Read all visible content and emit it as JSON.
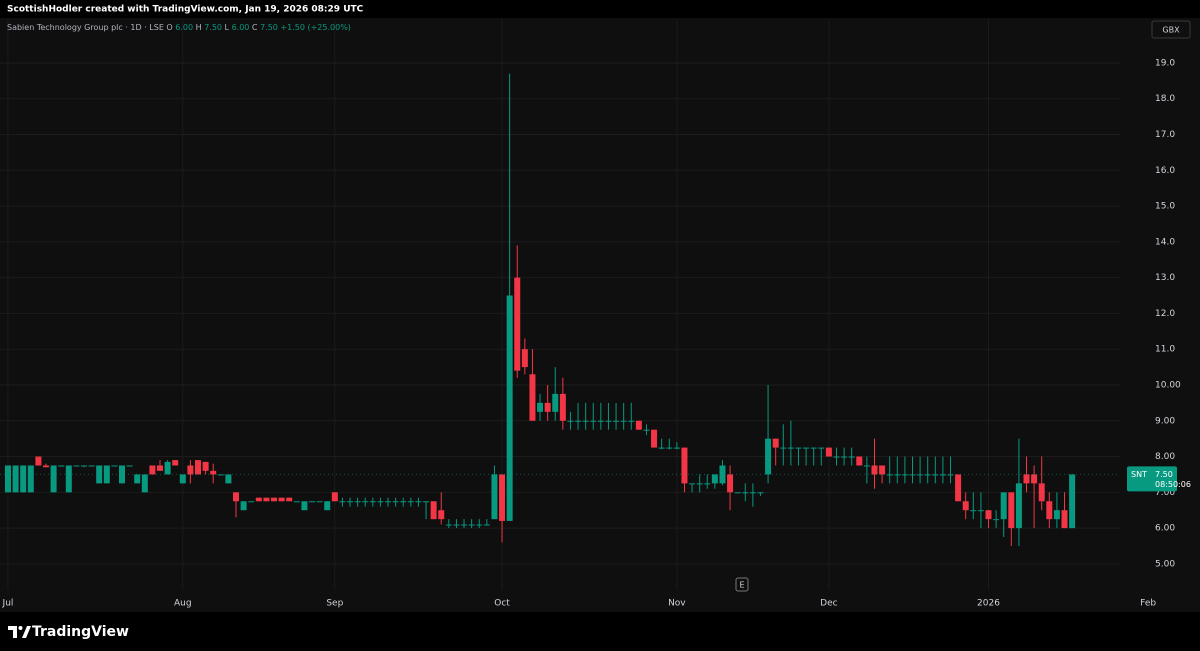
{
  "chart_data": {
    "type": "candlestick",
    "header": "ScottishHodler created with TradingView.com, Jan 19, 2026 08:29 UTC",
    "legend": {
      "name": "Sabien Technology Group plc · 1D · LSE",
      "fields": [
        {
          "key": "O",
          "value": "6.00"
        },
        {
          "key": "H",
          "value": "7.50"
        },
        {
          "key": "L",
          "value": "6.00"
        },
        {
          "key": "C",
          "value": "7.50"
        }
      ],
      "change": "+1.50 (+25.00%)"
    },
    "currency": "GBX",
    "price_label": {
      "symbol": "SNT",
      "price": "7.50",
      "countdown": "08:50:06"
    },
    "event_marker": "E",
    "brand": "TradingView",
    "up_color": "#089981",
    "down_color": "#f23645",
    "open": [
      7.0,
      7.0,
      7.0,
      7.0,
      8.0,
      7.75,
      7.0,
      7.75,
      7.0,
      7.75,
      7.75,
      7.75,
      7.25,
      7.25,
      7.75,
      7.25,
      7.75,
      7.25,
      7.0,
      7.75,
      7.75,
      7.5,
      7.9,
      7.25,
      7.75,
      7.9,
      7.85,
      7.6,
      7.5,
      7.25,
      7.0,
      6.5,
      6.75,
      6.85,
      6.85,
      6.85,
      6.85,
      6.85,
      6.75,
      6.5,
      6.75,
      6.75,
      6.5,
      7.0,
      6.75,
      6.75,
      6.75,
      6.75,
      6.75,
      6.75,
      6.75,
      6.75,
      6.75,
      6.75,
      6.75,
      6.75,
      6.75,
      6.5,
      6.1,
      6.1,
      6.1,
      6.1,
      6.1,
      6.1,
      6.25,
      7.5,
      6.2,
      13.0,
      11.0,
      10.3,
      9.25,
      9.5,
      9.25,
      9.75,
      9.0,
      9.0,
      9.0,
      9.0,
      9.0,
      9.0,
      9.0,
      9.0,
      9.0,
      9.0,
      8.75,
      8.75,
      8.25,
      8.25,
      8.25,
      8.25,
      7.25,
      7.25,
      7.25,
      7.25,
      7.25,
      7.5,
      7.0,
      7.0,
      7.0,
      7.0,
      7.5,
      8.5,
      8.25,
      8.25,
      8.25,
      8.25,
      8.25,
      8.25,
      8.25,
      8.0,
      8.0,
      8.0,
      8.0,
      7.75,
      7.75,
      7.75,
      7.5,
      7.5,
      7.5,
      7.5,
      7.5,
      7.5,
      7.5,
      7.5,
      7.5,
      7.5,
      6.75,
      6.5,
      6.5,
      6.5,
      6.25,
      6.25,
      7.0,
      6.0,
      7.5,
      7.5,
      7.25,
      6.75,
      6.25,
      6.5,
      6.0
    ],
    "high": [
      7.75,
      7.75,
      7.75,
      7.75,
      8.0,
      7.8,
      7.75,
      7.75,
      7.75,
      7.75,
      7.75,
      7.75,
      7.75,
      7.75,
      7.75,
      7.75,
      7.75,
      7.5,
      7.5,
      7.75,
      7.9,
      7.9,
      7.9,
      7.5,
      7.9,
      7.9,
      7.85,
      7.8,
      7.5,
      7.5,
      7.0,
      6.75,
      6.75,
      6.85,
      6.85,
      6.85,
      6.85,
      6.85,
      6.75,
      6.75,
      6.75,
      6.75,
      6.75,
      7.0,
      6.85,
      6.85,
      6.85,
      6.85,
      6.85,
      6.85,
      6.85,
      6.85,
      6.85,
      6.85,
      6.85,
      6.75,
      6.75,
      7.0,
      6.25,
      6.25,
      6.25,
      6.25,
      6.25,
      6.25,
      7.75,
      7.5,
      18.7,
      13.9,
      11.3,
      11.0,
      9.75,
      10.0,
      10.5,
      10.2,
      9.25,
      9.5,
      9.5,
      9.5,
      9.5,
      9.5,
      9.5,
      9.5,
      9.5,
      9.0,
      8.9,
      8.75,
      8.5,
      8.5,
      8.4,
      8.25,
      7.25,
      7.5,
      7.5,
      7.5,
      7.9,
      7.75,
      7.0,
      7.25,
      7.25,
      7.0,
      10.0,
      8.5,
      8.9,
      9.0,
      8.25,
      8.25,
      8.25,
      8.25,
      8.25,
      8.25,
      8.25,
      8.25,
      8.0,
      8.0,
      8.5,
      7.75,
      8.0,
      8.0,
      8.0,
      8.0,
      8.0,
      8.0,
      8.0,
      8.0,
      8.0,
      7.5,
      7.0,
      7.0,
      7.0,
      6.5,
      6.5,
      7.0,
      7.0,
      8.5,
      8.0,
      7.75,
      8.0,
      7.0,
      7.0,
      7.0,
      7.5
    ],
    "low": [
      7.0,
      7.0,
      7.0,
      7.0,
      7.75,
      7.7,
      7.0,
      7.75,
      7.0,
      7.75,
      7.7,
      7.75,
      7.25,
      7.25,
      7.75,
      7.25,
      7.75,
      7.25,
      7.0,
      7.5,
      7.6,
      7.5,
      7.75,
      7.25,
      7.25,
      7.5,
      7.5,
      7.25,
      7.5,
      7.25,
      6.3,
      6.5,
      6.75,
      6.75,
      6.75,
      6.75,
      6.75,
      6.75,
      6.75,
      6.5,
      6.75,
      6.75,
      6.5,
      6.75,
      6.6,
      6.6,
      6.6,
      6.6,
      6.6,
      6.6,
      6.6,
      6.6,
      6.6,
      6.6,
      6.6,
      6.25,
      6.25,
      6.1,
      6.0,
      6.0,
      6.0,
      6.0,
      6.0,
      6.1,
      6.25,
      5.6,
      6.2,
      10.2,
      10.3,
      9.0,
      9.0,
      9.0,
      9.0,
      8.75,
      8.75,
      8.75,
      8.75,
      8.75,
      8.75,
      8.75,
      8.75,
      8.75,
      8.75,
      8.75,
      8.6,
      8.25,
      8.2,
      8.2,
      8.2,
      7.0,
      7.0,
      7.0,
      7.1,
      7.1,
      7.2,
      6.5,
      7.0,
      6.75,
      6.6,
      6.9,
      7.25,
      7.75,
      7.75,
      7.75,
      7.75,
      7.75,
      7.75,
      7.75,
      8.0,
      7.75,
      7.75,
      7.75,
      7.75,
      7.25,
      7.1,
      7.25,
      7.25,
      7.25,
      7.25,
      7.25,
      7.25,
      7.25,
      7.25,
      7.25,
      7.25,
      6.75,
      6.25,
      6.25,
      6.0,
      6.0,
      6.0,
      5.75,
      5.5,
      5.5,
      7.0,
      6.0,
      6.5,
      6.0,
      6.0,
      6.0,
      6.0
    ],
    "close": [
      7.75,
      7.75,
      7.75,
      7.75,
      7.75,
      7.7,
      7.75,
      7.75,
      7.75,
      7.75,
      7.75,
      7.75,
      7.75,
      7.75,
      7.75,
      7.75,
      7.75,
      7.5,
      7.5,
      7.5,
      7.6,
      7.85,
      7.75,
      7.5,
      7.5,
      7.5,
      7.6,
      7.5,
      7.5,
      7.5,
      6.75,
      6.75,
      6.75,
      6.75,
      6.75,
      6.75,
      6.75,
      6.75,
      6.75,
      6.75,
      6.75,
      6.75,
      6.75,
      6.75,
      6.75,
      6.75,
      6.75,
      6.75,
      6.75,
      6.75,
      6.75,
      6.75,
      6.75,
      6.75,
      6.75,
      6.75,
      6.25,
      6.25,
      6.1,
      6.1,
      6.1,
      6.1,
      6.1,
      6.1,
      7.5,
      6.2,
      12.5,
      10.4,
      10.5,
      9.0,
      9.5,
      9.25,
      9.75,
      9.0,
      9.0,
      9.0,
      9.0,
      9.0,
      9.0,
      9.0,
      9.0,
      9.0,
      9.0,
      8.75,
      8.75,
      8.25,
      8.25,
      8.25,
      8.25,
      7.25,
      7.25,
      7.25,
      7.25,
      7.5,
      7.75,
      7.0,
      7.0,
      7.0,
      7.0,
      7.0,
      8.5,
      8.25,
      8.25,
      8.25,
      8.25,
      8.25,
      8.25,
      8.25,
      8.0,
      8.0,
      8.0,
      8.0,
      7.75,
      7.75,
      7.5,
      7.5,
      7.5,
      7.5,
      7.5,
      7.5,
      7.5,
      7.5,
      7.5,
      7.5,
      7.5,
      6.75,
      6.5,
      6.5,
      6.5,
      6.25,
      6.25,
      7.0,
      6.0,
      7.25,
      7.25,
      7.25,
      6.75,
      6.25,
      6.5,
      6.0,
      7.5
    ],
    "xlim": [
      -1.05,
      146.3
    ],
    "xticks": [
      {
        "value": 0,
        "label": "Jul"
      },
      {
        "value": 23,
        "label": "Aug"
      },
      {
        "value": 43,
        "label": "Sep"
      },
      {
        "value": 65,
        "label": "Oct"
      },
      {
        "value": 88,
        "label": "Nov"
      },
      {
        "value": 108,
        "label": "Dec"
      },
      {
        "value": 129,
        "label": "2026"
      },
      {
        "value": 150,
        "label": "Feb"
      }
    ],
    "ylim": [
      4.27,
      20.2
    ],
    "yticks": [
      {
        "value": 5,
        "label": "5.00"
      },
      {
        "value": 6,
        "label": "6.00"
      },
      {
        "value": 7,
        "label": "7.00"
      },
      {
        "value": 8,
        "label": "8.00"
      },
      {
        "value": 9,
        "label": "9.00"
      },
      {
        "value": 10,
        "label": "10.00"
      },
      {
        "value": 11,
        "label": "11.0"
      },
      {
        "value": 12,
        "label": "12.0"
      },
      {
        "value": 13,
        "label": "13.0"
      },
      {
        "value": 14,
        "label": "14.0"
      },
      {
        "value": 15,
        "label": "15.0"
      },
      {
        "value": 16,
        "label": "16.0"
      },
      {
        "value": 17,
        "label": "17.0"
      },
      {
        "value": 18,
        "label": "18.0"
      },
      {
        "value": 19,
        "label": "19.0"
      }
    ],
    "grid": true
  }
}
